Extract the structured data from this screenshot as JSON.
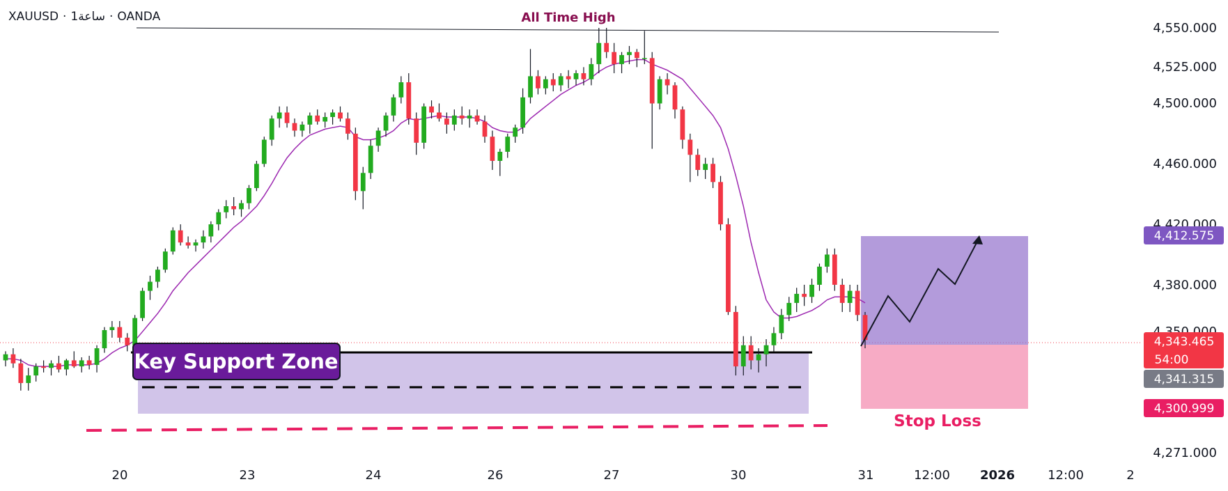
{
  "symbol": {
    "ticker": "XAUUSD",
    "interval": "1ساعة",
    "broker": "OANDA",
    "sep": "·"
  },
  "colors": {
    "up": "#089981",
    "up_bright": "#22ab1f",
    "down": "#f23645",
    "ma": "#9c27b0",
    "support_fill": "#b39ddb",
    "target_fill": "#9575cd",
    "stop_fill": "#f48fb1",
    "stop_text": "#e91e63",
    "label_bg": "#6a1b9a",
    "ath_text": "#880e4f"
  },
  "chart_data": {
    "type": "candlestick",
    "ylim": [
      4262,
      4560
    ],
    "x_ticks": [
      "20",
      "23",
      "24",
      "26",
      "27",
      "30",
      "31",
      "12:00",
      "2026",
      "12:00",
      "2"
    ],
    "y_ticks": [
      "4,550.000",
      "4,525.000",
      "4,500.000",
      "4,460.000",
      "4,420.000",
      "4,380.000",
      "4,350.000",
      "4,271.000"
    ],
    "badges": [
      {
        "text": "4,412.575",
        "value": 4412.575,
        "color": "#7e57c2"
      },
      {
        "text": "4,343.465",
        "sub": "54:00",
        "value": 4343.465,
        "color": "#f23645"
      },
      {
        "text": "4,341.315",
        "value": 4341.315,
        "color": "#787b86"
      },
      {
        "text": "4,300.999",
        "value": 4300.999,
        "color": "#e91e63"
      }
    ],
    "candles": [
      [
        4330,
        4336,
        4326,
        4334
      ],
      [
        4334,
        4338,
        4325,
        4328
      ],
      [
        4328,
        4331,
        4310,
        4315
      ],
      [
        4315,
        4325,
        4310,
        4320
      ],
      [
        4320,
        4328,
        4316,
        4326
      ],
      [
        4326,
        4330,
        4322,
        4325
      ],
      [
        4325,
        4330,
        4320,
        4328
      ],
      [
        4328,
        4333,
        4322,
        4324
      ],
      [
        4324,
        4331,
        4320,
        4330
      ],
      [
        4330,
        4336,
        4325,
        4326
      ],
      [
        4326,
        4332,
        4322,
        4330
      ],
      [
        4330,
        4333,
        4324,
        4327
      ],
      [
        4327,
        4340,
        4322,
        4338
      ],
      [
        4338,
        4352,
        4335,
        4350
      ],
      [
        4350,
        4356,
        4345,
        4352
      ],
      [
        4352,
        4356,
        4342,
        4345
      ],
      [
        4345,
        4348,
        4336,
        4340
      ],
      [
        4340,
        4360,
        4338,
        4358
      ],
      [
        4358,
        4378,
        4356,
        4376
      ],
      [
        4376,
        4386,
        4370,
        4382
      ],
      [
        4382,
        4392,
        4378,
        4390
      ],
      [
        4390,
        4404,
        4388,
        4402
      ],
      [
        4402,
        4418,
        4400,
        4416
      ],
      [
        4416,
        4420,
        4406,
        4408
      ],
      [
        4408,
        4412,
        4404,
        4406
      ],
      [
        4406,
        4410,
        4402,
        4408
      ],
      [
        4408,
        4416,
        4404,
        4412
      ],
      [
        4412,
        4422,
        4408,
        4420
      ],
      [
        4420,
        4430,
        4416,
        4428
      ],
      [
        4428,
        4436,
        4424,
        4432
      ],
      [
        4432,
        4438,
        4426,
        4430
      ],
      [
        4430,
        4436,
        4425,
        4434
      ],
      [
        4434,
        4446,
        4430,
        4444
      ],
      [
        4444,
        4462,
        4442,
        4460
      ],
      [
        4460,
        4478,
        4458,
        4476
      ],
      [
        4476,
        4492,
        4472,
        4490
      ],
      [
        4490,
        4498,
        4484,
        4494
      ],
      [
        4494,
        4498,
        4484,
        4487
      ],
      [
        4487,
        4490,
        4478,
        4482
      ],
      [
        4482,
        4488,
        4478,
        4486
      ],
      [
        4486,
        4494,
        4480,
        4492
      ],
      [
        4492,
        4496,
        4486,
        4488
      ],
      [
        4488,
        4494,
        4484,
        4491
      ],
      [
        4491,
        4496,
        4486,
        4494
      ],
      [
        4494,
        4498,
        4488,
        4490
      ],
      [
        4490,
        4494,
        4476,
        4480
      ],
      [
        4480,
        4484,
        4436,
        4442
      ],
      [
        4442,
        4458,
        4430,
        4454
      ],
      [
        4454,
        4476,
        4450,
        4472
      ],
      [
        4472,
        4484,
        4468,
        4482
      ],
      [
        4482,
        4494,
        4478,
        4492
      ],
      [
        4492,
        4506,
        4488,
        4504
      ],
      [
        4504,
        4518,
        4500,
        4514
      ],
      [
        4514,
        4520,
        4486,
        4490
      ],
      [
        4490,
        4494,
        4466,
        4474
      ],
      [
        4474,
        4500,
        4470,
        4498
      ],
      [
        4498,
        4502,
        4490,
        4494
      ],
      [
        4494,
        4500,
        4488,
        4490
      ],
      [
        4490,
        4494,
        4480,
        4486
      ],
      [
        4486,
        4496,
        4482,
        4492
      ],
      [
        4492,
        4498,
        4486,
        4490
      ],
      [
        4490,
        4496,
        4484,
        4492
      ],
      [
        4492,
        4496,
        4486,
        4488
      ],
      [
        4488,
        4492,
        4474,
        4478
      ],
      [
        4478,
        4482,
        4456,
        4462
      ],
      [
        4462,
        4470,
        4452,
        4468
      ],
      [
        4468,
        4480,
        4464,
        4478
      ],
      [
        4478,
        4486,
        4474,
        4484
      ],
      [
        4484,
        4510,
        4480,
        4504
      ],
      [
        4504,
        4536,
        4500,
        4518
      ],
      [
        4518,
        4522,
        4506,
        4510
      ],
      [
        4510,
        4518,
        4506,
        4516
      ],
      [
        4516,
        4520,
        4508,
        4512
      ],
      [
        4512,
        4520,
        4508,
        4518
      ],
      [
        4518,
        4522,
        4510,
        4516
      ],
      [
        4516,
        4522,
        4512,
        4520
      ],
      [
        4520,
        4524,
        4512,
        4516
      ],
      [
        4516,
        4530,
        4512,
        4526
      ],
      [
        4526,
        4550,
        4520,
        4540
      ],
      [
        4540,
        4550,
        4530,
        4534
      ],
      [
        4534,
        4540,
        4520,
        4526
      ],
      [
        4526,
        4534,
        4520,
        4532
      ],
      [
        4532,
        4538,
        4526,
        4534
      ],
      [
        4534,
        4536,
        4524,
        4530
      ],
      [
        4530,
        4548,
        4526,
        4530
      ],
      [
        4530,
        4534,
        4470,
        4500
      ],
      [
        4500,
        4518,
        4496,
        4516
      ],
      [
        4516,
        4520,
        4506,
        4512
      ],
      [
        4512,
        4514,
        4490,
        4496
      ],
      [
        4496,
        4498,
        4470,
        4476
      ],
      [
        4476,
        4480,
        4448,
        4466
      ],
      [
        4466,
        4470,
        4452,
        4456
      ],
      [
        4456,
        4464,
        4450,
        4460
      ],
      [
        4460,
        4464,
        4444,
        4448
      ],
      [
        4448,
        4452,
        4416,
        4420
      ],
      [
        4420,
        4424,
        4360,
        4362
      ],
      [
        4362,
        4366,
        4320,
        4326
      ],
      [
        4326,
        4346,
        4320,
        4340
      ],
      [
        4340,
        4346,
        4324,
        4330
      ],
      [
        4330,
        4338,
        4322,
        4334
      ],
      [
        4334,
        4344,
        4326,
        4340
      ],
      [
        4340,
        4352,
        4336,
        4348
      ],
      [
        4348,
        4364,
        4344,
        4360
      ],
      [
        4360,
        4372,
        4356,
        4368
      ],
      [
        4368,
        4378,
        4362,
        4374
      ],
      [
        4374,
        4380,
        4366,
        4372
      ],
      [
        4372,
        4384,
        4368,
        4380
      ],
      [
        4380,
        4394,
        4376,
        4392
      ],
      [
        4392,
        4404,
        4388,
        4400
      ],
      [
        4400,
        4404,
        4376,
        4380
      ],
      [
        4380,
        4384,
        4362,
        4368
      ],
      [
        4368,
        4380,
        4362,
        4376
      ],
      [
        4376,
        4380,
        4356,
        4360
      ],
      [
        4360,
        4362,
        4338,
        4343.465
      ]
    ],
    "ma": [
      4331,
      4331,
      4330,
      4327,
      4326,
      4326,
      4326,
      4326,
      4327,
      4327,
      4327,
      4327,
      4328,
      4331,
      4335,
      4338,
      4340,
      4343,
      4349,
      4355,
      4361,
      4368,
      4376,
      4382,
      4388,
      4393,
      4398,
      4403,
      4408,
      4413,
      4418,
      4422,
      4427,
      4432,
      4439,
      4447,
      4456,
      4464,
      4470,
      4475,
      4479,
      4481,
      4483,
      4484,
      4485,
      4484,
      4478,
      4476,
      4476,
      4477,
      4479,
      4482,
      4487,
      4490,
      4489,
      4490,
      4491,
      4492,
      4491,
      4491,
      4491,
      4491,
      4490,
      4488,
      4484,
      4482,
      4481,
      4481,
      4484,
      4490,
      4494,
      4498,
      4502,
      4506,
      4509,
      4512,
      4514,
      4517,
      4521,
      4524,
      4526,
      4527,
      4528,
      4529,
      4529,
      4526,
      4524,
      4522,
      4519,
      4516,
      4510,
      4504,
      4498,
      4492,
      4484,
      4470,
      4452,
      4432,
      4408,
      4388,
      4370,
      4362,
      4358,
      4358,
      4359,
      4361,
      4363,
      4366,
      4370,
      4372,
      4372,
      4372,
      4371,
      4368
    ]
  },
  "annotations": {
    "ath_label": "All Time High",
    "support_label": "Key Support Zone",
    "stop_label": "Stop Loss"
  }
}
